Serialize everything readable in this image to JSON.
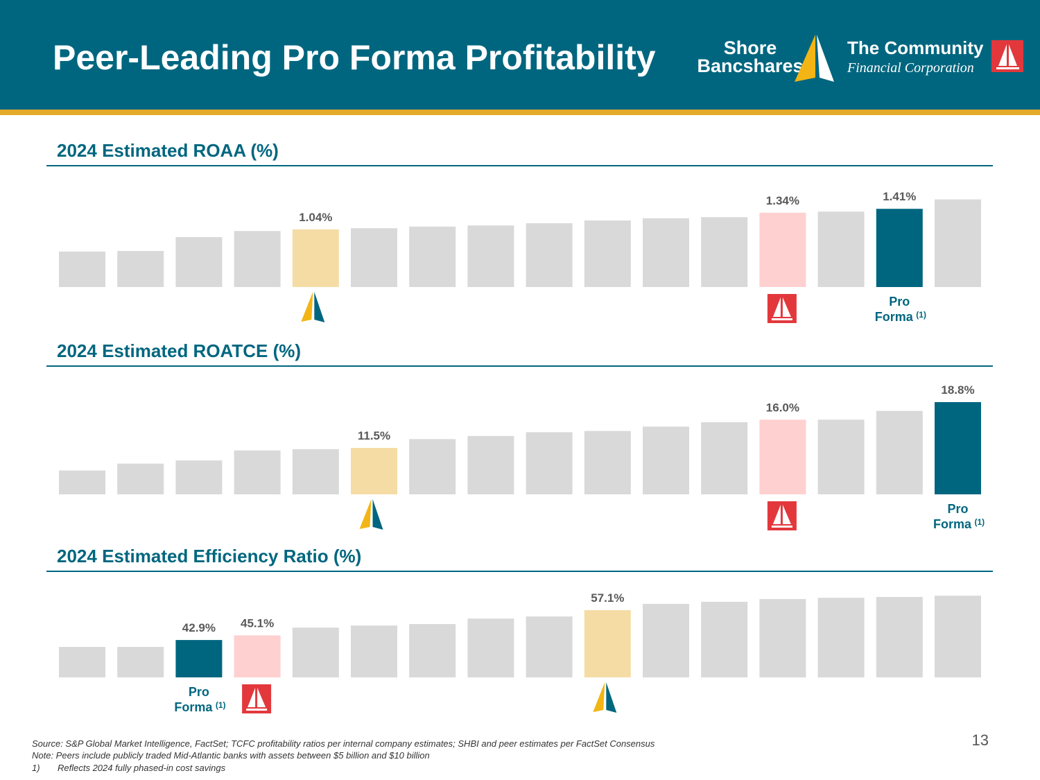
{
  "header": {
    "title": "Peer-Leading Pro Forma Profitability",
    "logo_left": [
      "Shore",
      "Bancshares"
    ],
    "logo_right": [
      "The Community",
      "Financial Corporation"
    ]
  },
  "chart_data": [
    {
      "type": "bar",
      "title": "2024 Estimated ROAA (%)",
      "categories": [
        null,
        null,
        null,
        null,
        null,
        null,
        null,
        null,
        null,
        null,
        null,
        null,
        null,
        null,
        "Pro Forma",
        null
      ],
      "values": [
        0.64,
        0.65,
        0.9,
        1.01,
        1.04,
        1.06,
        1.09,
        1.11,
        1.15,
        1.2,
        1.24,
        1.26,
        1.34,
        1.36,
        1.41,
        1.58
      ],
      "value_labels": [
        null,
        null,
        null,
        null,
        "1.04%",
        null,
        null,
        null,
        null,
        null,
        null,
        null,
        "1.34%",
        null,
        "1.41%",
        null
      ],
      "colors": [
        "#d9d9d9",
        "#d9d9d9",
        "#d9d9d9",
        "#d9d9d9",
        "#f5dca5",
        "#d9d9d9",
        "#d9d9d9",
        "#d9d9d9",
        "#d9d9d9",
        "#d9d9d9",
        "#d9d9d9",
        "#d9d9d9",
        "#ffd0d0",
        "#d9d9d9",
        "#006680",
        "#d9d9d9"
      ],
      "ylim": [
        0,
        1.9
      ],
      "footnote_marker": "(1)"
    },
    {
      "type": "bar",
      "title": "2024 Estimated ROATCE (%)",
      "categories": [
        null,
        null,
        null,
        null,
        null,
        null,
        null,
        null,
        null,
        null,
        null,
        null,
        null,
        null,
        null,
        "Pro Forma"
      ],
      "values": [
        7.9,
        9.0,
        9.5,
        11.1,
        11.3,
        11.5,
        12.9,
        13.4,
        14.0,
        14.2,
        14.9,
        15.6,
        16.0,
        16.0,
        17.4,
        18.8
      ],
      "value_labels": [
        null,
        null,
        null,
        null,
        null,
        "11.5%",
        null,
        null,
        null,
        null,
        null,
        null,
        "16.0%",
        null,
        null,
        "18.8%"
      ],
      "colors": [
        "#d9d9d9",
        "#d9d9d9",
        "#d9d9d9",
        "#d9d9d9",
        "#d9d9d9",
        "#f5dca5",
        "#d9d9d9",
        "#d9d9d9",
        "#d9d9d9",
        "#d9d9d9",
        "#d9d9d9",
        "#d9d9d9",
        "#ffd0d0",
        "#d9d9d9",
        "#d9d9d9",
        "#006680"
      ],
      "ylim": [
        4.1,
        22.0
      ],
      "footnote_marker": "(1)"
    },
    {
      "type": "bar",
      "title": "2024 Estimated Efficiency Ratio (%)",
      "categories": [
        null,
        null,
        "Pro Forma",
        null,
        null,
        null,
        null,
        null,
        null,
        null,
        null,
        null,
        null,
        null,
        null,
        null
      ],
      "values": [
        39.6,
        39.6,
        42.9,
        45.1,
        48.8,
        49.8,
        50.5,
        53.1,
        54.1,
        57.1,
        60.1,
        61.1,
        62.4,
        63.0,
        63.4,
        64.0
      ],
      "value_labels": [
        null,
        null,
        "42.9%",
        "45.1%",
        null,
        null,
        null,
        null,
        null,
        "57.1%",
        null,
        null,
        null,
        null,
        null,
        null
      ],
      "colors": [
        "#d9d9d9",
        "#d9d9d9",
        "#006680",
        "#ffd0d0",
        "#d9d9d9",
        "#d9d9d9",
        "#d9d9d9",
        "#d9d9d9",
        "#d9d9d9",
        "#f5dca5",
        "#d9d9d9",
        "#d9d9d9",
        "#d9d9d9",
        "#d9d9d9",
        "#d9d9d9",
        "#d9d9d9"
      ],
      "ylim": [
        25.1,
        70.0
      ],
      "footnote_marker": "(1)"
    }
  ],
  "footer": {
    "source": "Source: S&P Global Market Intelligence,  FactSet; TCFC profitability  ratios per internal company estimates; SHBI and peer estimates per FactSet Consensus",
    "note": "Note: Peers include publicly traded Mid-Atlantic banks with assets between $5 billion and $10 billion",
    "footnote_number": "1)",
    "footnote_text": "Reflects 2024 fully phased-in cost savings"
  },
  "page_number": 13
}
